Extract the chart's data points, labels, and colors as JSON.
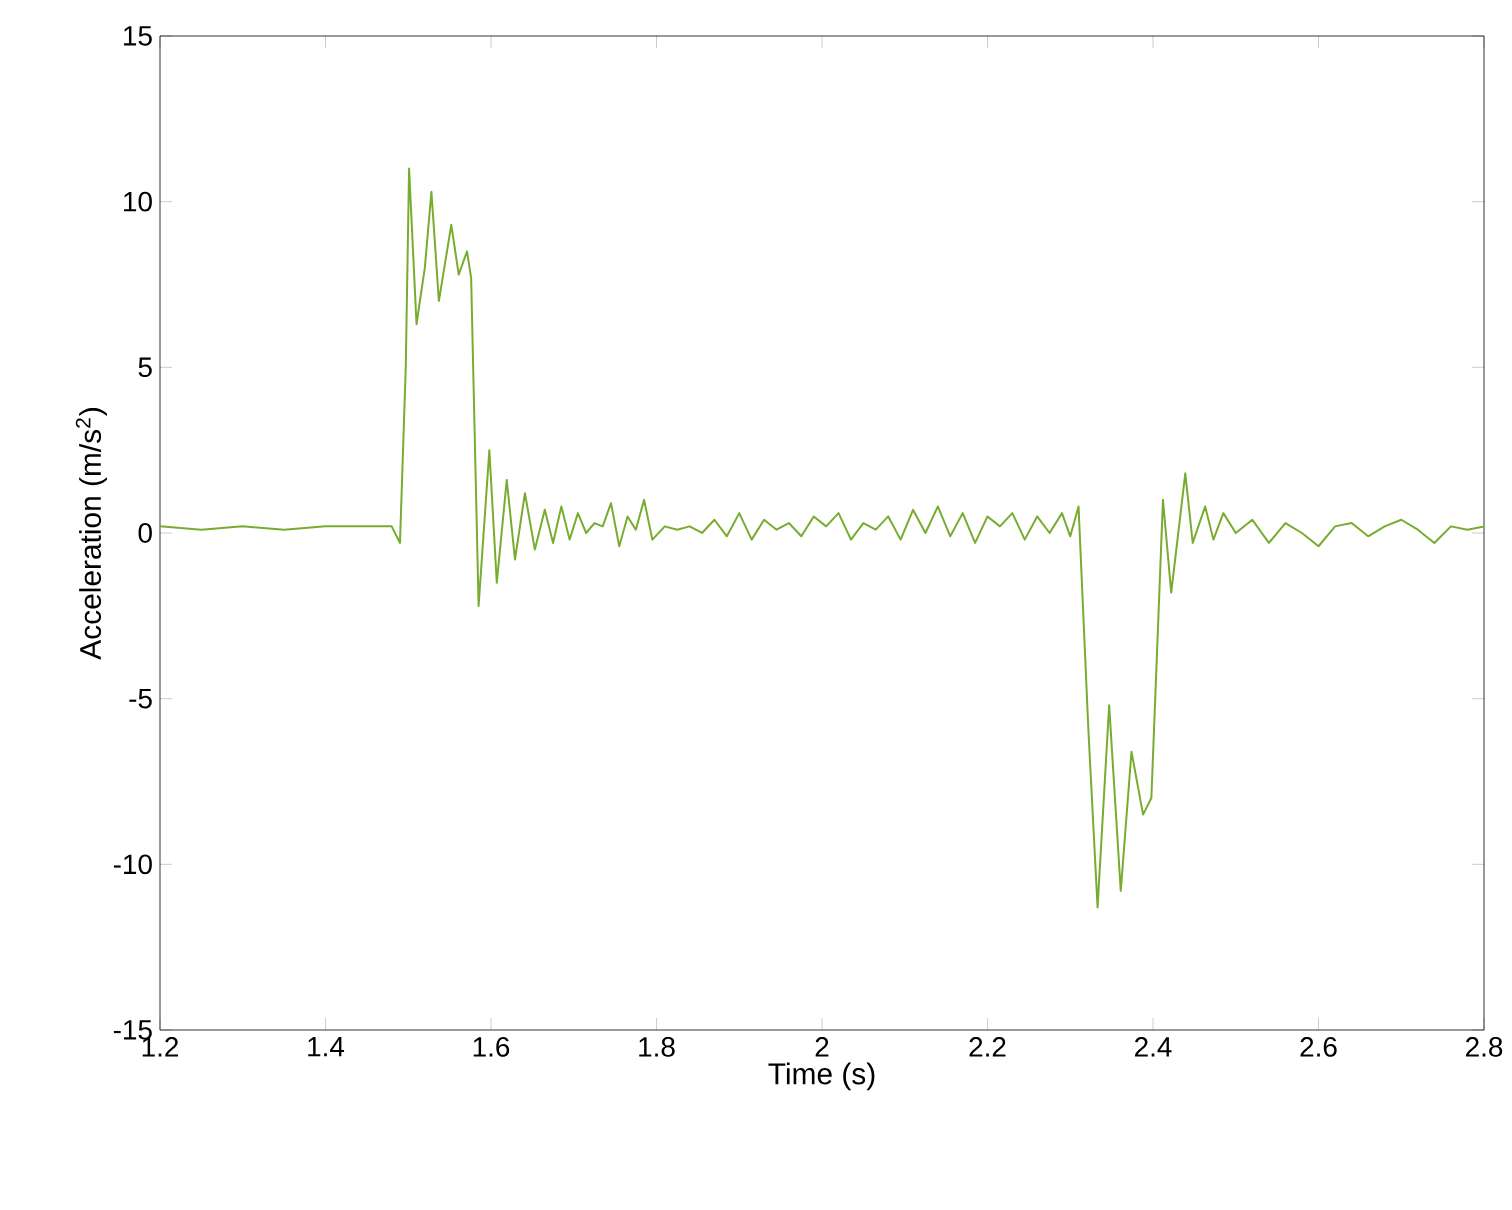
{
  "chart_data": {
    "type": "line",
    "xlabel": "Time (s)",
    "ylabel": "Acceleration (m/s$^{2}$)",
    "xlim": [
      1.2,
      2.8
    ],
    "ylim": [
      -15,
      15
    ],
    "xticks": [
      1.2,
      1.4,
      1.6,
      1.8,
      2,
      2.2,
      2.4,
      2.6,
      2.8
    ],
    "yticks": [
      -15,
      -10,
      -5,
      0,
      5,
      10,
      15
    ],
    "grid": false,
    "marker": "none",
    "line_style": "solid",
    "series": [
      {
        "color": "#77ac30",
        "x": [
          1.2,
          1.25,
          1.3,
          1.35,
          1.4,
          1.45,
          1.48,
          1.49,
          1.497,
          1.501,
          1.51,
          1.52,
          1.528,
          1.537,
          1.552,
          1.561,
          1.571,
          1.576,
          1.585,
          1.598,
          1.607,
          1.619,
          1.629,
          1.641,
          1.653,
          1.665,
          1.675,
          1.685,
          1.695,
          1.705,
          1.715,
          1.725,
          1.735,
          1.745,
          1.755,
          1.765,
          1.775,
          1.785,
          1.795,
          1.81,
          1.825,
          1.84,
          1.855,
          1.87,
          1.885,
          1.9,
          1.915,
          1.93,
          1.945,
          1.96,
          1.975,
          1.99,
          2.005,
          2.02,
          2.035,
          2.05,
          2.065,
          2.08,
          2.095,
          2.11,
          2.125,
          2.14,
          2.155,
          2.17,
          2.185,
          2.2,
          2.215,
          2.23,
          2.245,
          2.26,
          2.275,
          2.29,
          2.3,
          2.31,
          2.322,
          2.333,
          2.347,
          2.361,
          2.374,
          2.388,
          2.398,
          2.412,
          2.422,
          2.439,
          2.448,
          2.463,
          2.473,
          2.485,
          2.5,
          2.52,
          2.54,
          2.56,
          2.58,
          2.6,
          2.62,
          2.64,
          2.66,
          2.68,
          2.7,
          2.72,
          2.74,
          2.76,
          2.78,
          2.8
        ],
        "values": [
          0.2,
          0.1,
          0.2,
          0.1,
          0.2,
          0.2,
          0.2,
          -0.3,
          5,
          11,
          6.3,
          8,
          10.3,
          7,
          9.3,
          7.8,
          8.5,
          7.7,
          -2.2,
          2.5,
          -1.5,
          1.6,
          -0.8,
          1.2,
          -0.5,
          0.7,
          -0.3,
          0.8,
          -0.2,
          0.6,
          0,
          0.3,
          0.2,
          0.9,
          -0.4,
          0.5,
          0.1,
          1,
          -0.2,
          0.2,
          0.1,
          0.2,
          0,
          0.4,
          -0.1,
          0.6,
          -0.2,
          0.4,
          0.1,
          0.3,
          -0.1,
          0.5,
          0.2,
          0.6,
          -0.2,
          0.3,
          0.1,
          0.5,
          -0.2,
          0.7,
          0,
          0.8,
          -0.1,
          0.6,
          -0.3,
          0.5,
          0.2,
          0.6,
          -0.2,
          0.5,
          0,
          0.6,
          -0.1,
          0.8,
          -6,
          -11.3,
          -5.2,
          -10.8,
          -6.6,
          -8.5,
          -8,
          1,
          -1.8,
          1.8,
          -0.3,
          0.8,
          -0.2,
          0.6,
          0,
          0.4,
          -0.3,
          0.3,
          0,
          -0.4,
          0.2,
          0.3,
          -0.1,
          0.2,
          0.4,
          0.1,
          -0.3,
          0.2,
          0.1,
          0.2
        ]
      }
    ]
  }
}
